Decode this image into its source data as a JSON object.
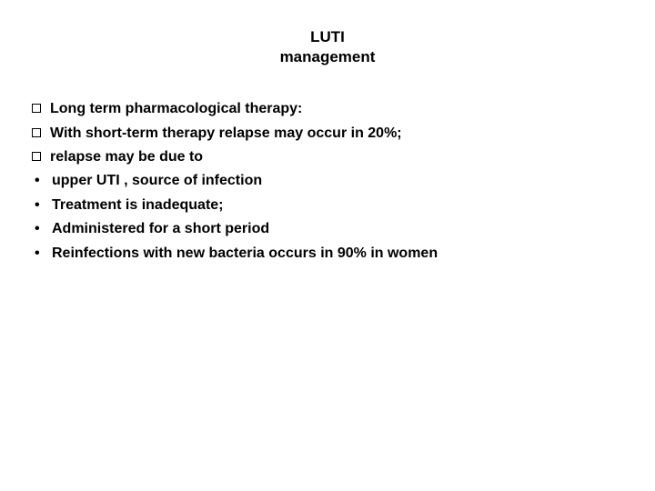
{
  "title": {
    "line1": "LUTI",
    "line2": "management"
  },
  "items": [
    {
      "bullet": "square",
      "text": "Long term pharmacological therapy:"
    },
    {
      "bullet": "square",
      "text": "With short-term therapy relapse may occur in 20%;"
    },
    {
      "bullet": "square",
      "text": "relapse may be due to"
    },
    {
      "bullet": "dot",
      "text": "upper UTI , source of infection"
    },
    {
      "bullet": "dot",
      "text": "Treatment  is inadequate;"
    },
    {
      "bullet": "dot",
      "text": "Administered  for a short period"
    },
    {
      "bullet": "dot",
      "text": "Reinfections with new bacteria occurs in 90% in women"
    }
  ],
  "colors": {
    "background": "#ffffff",
    "text": "#000000"
  },
  "typography": {
    "title_fontsize": 17,
    "body_fontsize": 16,
    "font_family": "Arial",
    "bold": true
  }
}
